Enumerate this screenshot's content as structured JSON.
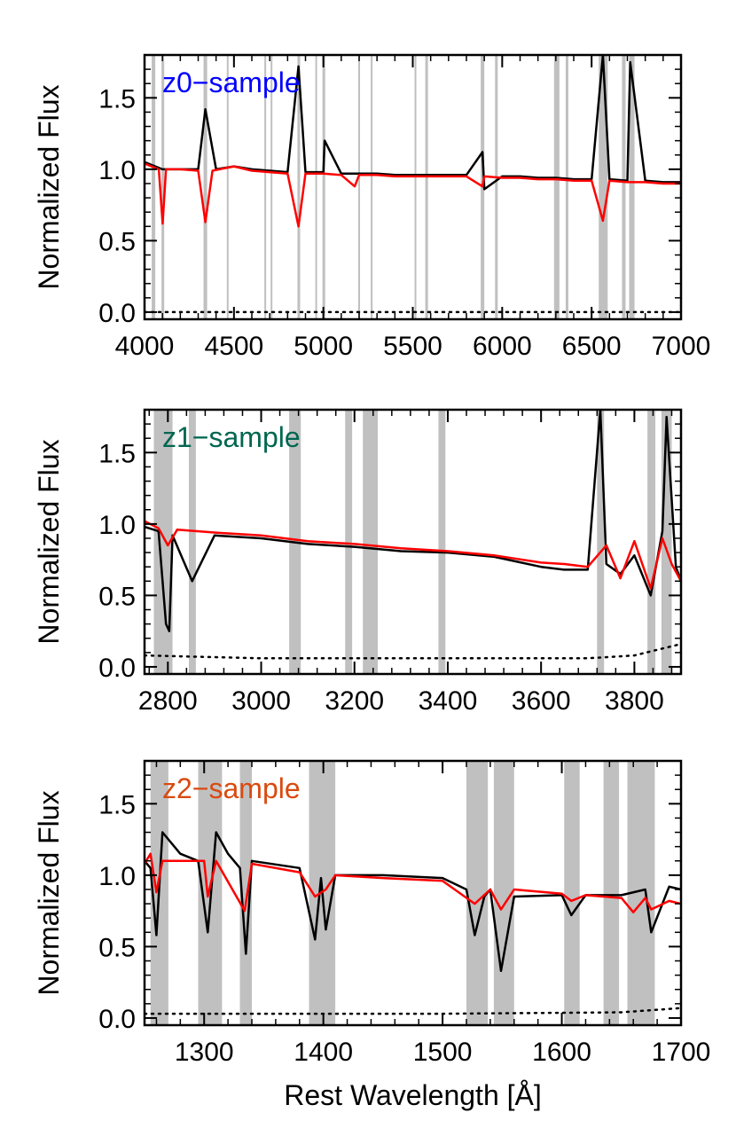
{
  "colors": {
    "model": "#ff0000",
    "observed": "#000000",
    "masked": "#c0c0c0",
    "z0_label": "#0000ff",
    "z1_label": "#006650",
    "z2_label": "#d94a10"
  },
  "chart_data": [
    {
      "type": "line",
      "label": "z0−sample",
      "ylabel": "Normalized Flux",
      "xlabel": "",
      "xlim": [
        4000,
        7000
      ],
      "ylim": [
        -0.05,
        1.8
      ],
      "xticks": [
        4000,
        4500,
        5000,
        5500,
        6000,
        6500,
        7000
      ],
      "xtick_labels": [
        "4000",
        "4500",
        "5000",
        "5500",
        "6000",
        "6500",
        "7000"
      ],
      "yticks": [
        0.0,
        0.5,
        1.0,
        1.5
      ],
      "ytick_labels": [
        "0.0",
        "0.5",
        "1.0",
        "1.5"
      ],
      "masks": [
        [
          4040,
          4060
        ],
        [
          4095,
          4110
        ],
        [
          4330,
          4350
        ],
        [
          4460,
          4470
        ],
        [
          4670,
          4680
        ],
        [
          4705,
          4715
        ],
        [
          4855,
          4870
        ],
        [
          4955,
          4965
        ],
        [
          4995,
          5010
        ],
        [
          5195,
          5205
        ],
        [
          5265,
          5275
        ],
        [
          5510,
          5520
        ],
        [
          5570,
          5585
        ],
        [
          5880,
          5900
        ],
        [
          5960,
          5975
        ],
        [
          6290,
          6320
        ],
        [
          6355,
          6370
        ],
        [
          6540,
          6590
        ],
        [
          6670,
          6690
        ],
        [
          6710,
          6740
        ]
      ],
      "series": [
        {
          "role": "observed",
          "x": [
            4000,
            4100,
            4200,
            4300,
            4340,
            4400,
            4500,
            4600,
            4700,
            4800,
            4861,
            4900,
            5000,
            5007,
            5100,
            5200,
            5300,
            5400,
            5500,
            5600,
            5700,
            5800,
            5890,
            5900,
            6000,
            6100,
            6200,
            6300,
            6400,
            6500,
            6563,
            6600,
            6700,
            6716,
            6800,
            6900,
            7000
          ],
          "y": [
            1.05,
            1.0,
            1.0,
            1.0,
            1.42,
            1.0,
            1.02,
            1.0,
            0.99,
            0.98,
            1.72,
            0.98,
            0.98,
            1.2,
            0.97,
            0.97,
            0.97,
            0.96,
            0.96,
            0.96,
            0.96,
            0.96,
            1.12,
            0.86,
            0.95,
            0.95,
            0.94,
            0.94,
            0.93,
            0.93,
            1.8,
            0.93,
            0.92,
            1.75,
            0.92,
            0.91,
            0.91
          ]
        },
        {
          "role": "model",
          "x": [
            4000,
            4080,
            4101,
            4120,
            4200,
            4300,
            4340,
            4380,
            4500,
            4600,
            4700,
            4800,
            4861,
            4900,
            5000,
            5100,
            5175,
            5200,
            5300,
            5400,
            5500,
            5600,
            5700,
            5800,
            5890,
            5900,
            6000,
            6100,
            6200,
            6300,
            6400,
            6500,
            6563,
            6600,
            6700,
            6800,
            6900,
            7000
          ],
          "y": [
            1.04,
            1.0,
            0.62,
            1.0,
            1.0,
            0.99,
            0.63,
            0.99,
            1.02,
            0.99,
            0.98,
            0.97,
            0.6,
            0.97,
            0.97,
            0.96,
            0.88,
            0.96,
            0.96,
            0.95,
            0.95,
            0.95,
            0.95,
            0.95,
            0.88,
            0.95,
            0.94,
            0.94,
            0.93,
            0.93,
            0.92,
            0.92,
            0.64,
            0.92,
            0.91,
            0.91,
            0.9,
            0.9
          ]
        },
        {
          "role": "error",
          "x": [
            4000,
            7000
          ],
          "y": [
            0.0,
            0.0
          ]
        }
      ]
    },
    {
      "type": "line",
      "label": "z1−sample",
      "ylabel": "Normalized Flux",
      "xlabel": "",
      "xlim": [
        2750,
        3900
      ],
      "ylim": [
        -0.05,
        1.8
      ],
      "xticks": [
        2800,
        3000,
        3200,
        3400,
        3600,
        3800
      ],
      "xtick_labels": [
        "2800",
        "3000",
        "3200",
        "3400",
        "3600",
        "3800"
      ],
      "yticks": [
        0.0,
        0.5,
        1.0,
        1.5
      ],
      "ytick_labels": [
        "0.0",
        "0.5",
        "1.0",
        "1.5"
      ],
      "masks": [
        [
          2770,
          2810
        ],
        [
          2845,
          2860
        ],
        [
          3060,
          3085
        ],
        [
          3180,
          3195
        ],
        [
          3218,
          3250
        ],
        [
          3380,
          3395
        ],
        [
          3720,
          3735
        ],
        [
          3828,
          3845
        ],
        [
          3858,
          3880
        ]
      ],
      "series": [
        {
          "role": "observed",
          "x": [
            2750,
            2780,
            2796,
            2803,
            2810,
            2852,
            2900,
            3000,
            3100,
            3200,
            3300,
            3400,
            3500,
            3600,
            3650,
            3700,
            3727,
            3740,
            3770,
            3800,
            3835,
            3860,
            3869,
            3889,
            3900
          ],
          "y": [
            0.98,
            0.95,
            0.3,
            0.25,
            0.92,
            0.6,
            0.92,
            0.9,
            0.86,
            0.84,
            0.81,
            0.8,
            0.77,
            0.7,
            0.68,
            0.68,
            1.8,
            0.72,
            0.65,
            0.78,
            0.5,
            0.95,
            1.75,
            0.7,
            0.6
          ]
        },
        {
          "role": "model",
          "x": [
            2750,
            2780,
            2800,
            2820,
            2900,
            3000,
            3100,
            3200,
            3300,
            3400,
            3500,
            3600,
            3650,
            3700,
            3740,
            3770,
            3800,
            3835,
            3860,
            3880,
            3900
          ],
          "y": [
            1.02,
            0.97,
            0.85,
            0.96,
            0.94,
            0.92,
            0.88,
            0.86,
            0.83,
            0.81,
            0.78,
            0.73,
            0.72,
            0.7,
            0.85,
            0.62,
            0.88,
            0.55,
            0.9,
            0.72,
            0.6
          ]
        },
        {
          "role": "error",
          "x": [
            2750,
            3000,
            3400,
            3700,
            3800,
            3850,
            3900
          ],
          "y": [
            0.08,
            0.06,
            0.06,
            0.06,
            0.08,
            0.12,
            0.16
          ]
        }
      ]
    },
    {
      "type": "line",
      "label": "z2−sample",
      "ylabel": "Normalized Flux",
      "xlabel": "Rest Wavelength [Å]",
      "xlim": [
        1250,
        1700
      ],
      "ylim": [
        -0.05,
        1.8
      ],
      "xticks": [
        1300,
        1400,
        1500,
        1600,
        1700
      ],
      "xtick_labels": [
        "1300",
        "1400",
        "1500",
        "1600",
        "1700"
      ],
      "yticks": [
        0.0,
        0.5,
        1.0,
        1.5
      ],
      "ytick_labels": [
        "0.0",
        "0.5",
        "1.0",
        "1.5"
      ],
      "masks": [
        [
          1255,
          1270
        ],
        [
          1295,
          1315
        ],
        [
          1330,
          1340
        ],
        [
          1388,
          1410
        ],
        [
          1520,
          1538
        ],
        [
          1543,
          1560
        ],
        [
          1602,
          1615
        ],
        [
          1635,
          1648
        ],
        [
          1655,
          1678
        ]
      ],
      "series": [
        {
          "role": "observed",
          "x": [
            1250,
            1255,
            1260,
            1265,
            1280,
            1295,
            1303,
            1310,
            1320,
            1330,
            1335,
            1340,
            1380,
            1393,
            1398,
            1402,
            1410,
            1450,
            1500,
            1520,
            1527,
            1535,
            1540,
            1549,
            1560,
            1600,
            1608,
            1620,
            1650,
            1670,
            1675,
            1690,
            1700
          ],
          "y": [
            1.1,
            1.05,
            0.58,
            1.3,
            1.15,
            1.1,
            0.6,
            1.3,
            1.15,
            1.05,
            0.45,
            1.1,
            1.05,
            0.55,
            0.98,
            0.62,
            1.0,
            1.0,
            0.98,
            0.9,
            0.58,
            0.85,
            0.9,
            0.33,
            0.85,
            0.86,
            0.72,
            0.86,
            0.86,
            0.9,
            0.6,
            0.92,
            0.9
          ]
        },
        {
          "role": "model",
          "x": [
            1250,
            1255,
            1260,
            1265,
            1300,
            1303,
            1310,
            1334,
            1340,
            1380,
            1393,
            1402,
            1410,
            1450,
            1500,
            1527,
            1540,
            1549,
            1560,
            1600,
            1608,
            1620,
            1650,
            1660,
            1670,
            1675,
            1690,
            1700
          ],
          "y": [
            1.08,
            1.15,
            0.88,
            1.1,
            1.1,
            0.85,
            1.1,
            0.75,
            1.08,
            1.02,
            0.85,
            0.9,
            1.0,
            0.98,
            0.96,
            0.8,
            0.9,
            0.76,
            0.9,
            0.87,
            0.82,
            0.86,
            0.84,
            0.74,
            0.84,
            0.76,
            0.82,
            0.8
          ]
        },
        {
          "role": "error",
          "x": [
            1250,
            1500,
            1650,
            1700
          ],
          "y": [
            0.03,
            0.03,
            0.04,
            0.07
          ]
        }
      ]
    }
  ]
}
